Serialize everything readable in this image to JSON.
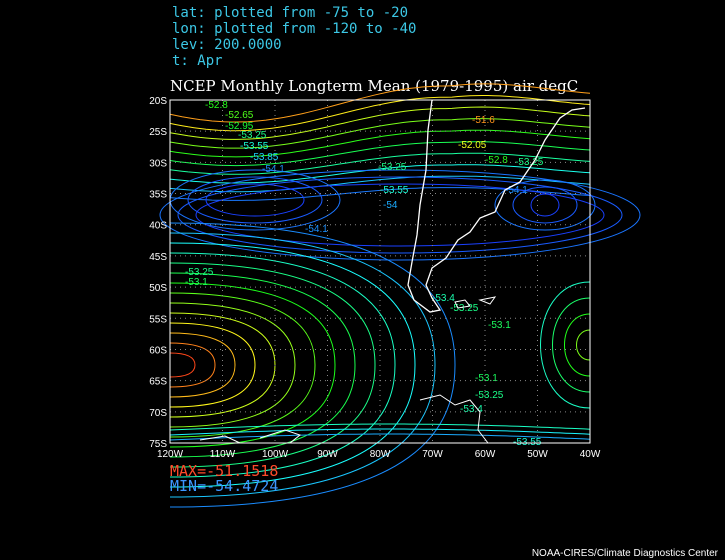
{
  "header": {
    "lines": [
      "lat: plotted from -75 to -20",
      "lon: plotted from -120 to -40",
      "lev: 200.0000",
      "t: Apr"
    ],
    "title": "NCEP Monthly Longterm Mean (1979-1995) air degC"
  },
  "map": {
    "lat_range": [
      -20,
      -75
    ],
    "lon_range": [
      -120,
      -40
    ],
    "lat_ticks": [
      {
        "value": -20,
        "label": "20S"
      },
      {
        "value": -25,
        "label": "25S"
      },
      {
        "value": -30,
        "label": "30S"
      },
      {
        "value": -35,
        "label": "35S"
      },
      {
        "value": -40,
        "label": "40S"
      },
      {
        "value": -45,
        "label": "45S"
      },
      {
        "value": -50,
        "label": "50S"
      },
      {
        "value": -55,
        "label": "55S"
      },
      {
        "value": -60,
        "label": "60S"
      },
      {
        "value": -65,
        "label": "65S"
      },
      {
        "value": -70,
        "label": "70S"
      },
      {
        "value": -75,
        "label": "75S"
      }
    ],
    "lon_ticks": [
      {
        "value": -120,
        "label": "120W"
      },
      {
        "value": -110,
        "label": "110W"
      },
      {
        "value": -100,
        "label": "100W"
      },
      {
        "value": -90,
        "label": "90W"
      },
      {
        "value": -80,
        "label": "80W"
      },
      {
        "value": -70,
        "label": "70W"
      },
      {
        "value": -60,
        "label": "60W"
      },
      {
        "value": -50,
        "label": "50W"
      },
      {
        "value": -40,
        "label": "40W"
      }
    ],
    "contour_labels": [
      -52.8,
      -52.65,
      -52.95,
      -53.25,
      -53.55,
      -53.85,
      -54.1,
      -53.25,
      -53.55,
      -54,
      -54.1,
      -53.25,
      -53.1,
      -53.1,
      -53.25,
      -53.4,
      -53.1,
      -53.25,
      -53.4,
      -53.55,
      -51.6,
      -52.05,
      -52.8,
      -53.25,
      -54.1
    ]
  },
  "stats": {
    "max": "MAX=-51.1518",
    "min": "MIN=-54.4724"
  },
  "footer": "NOAA-CIRES/Climate Diagnostics Center"
}
